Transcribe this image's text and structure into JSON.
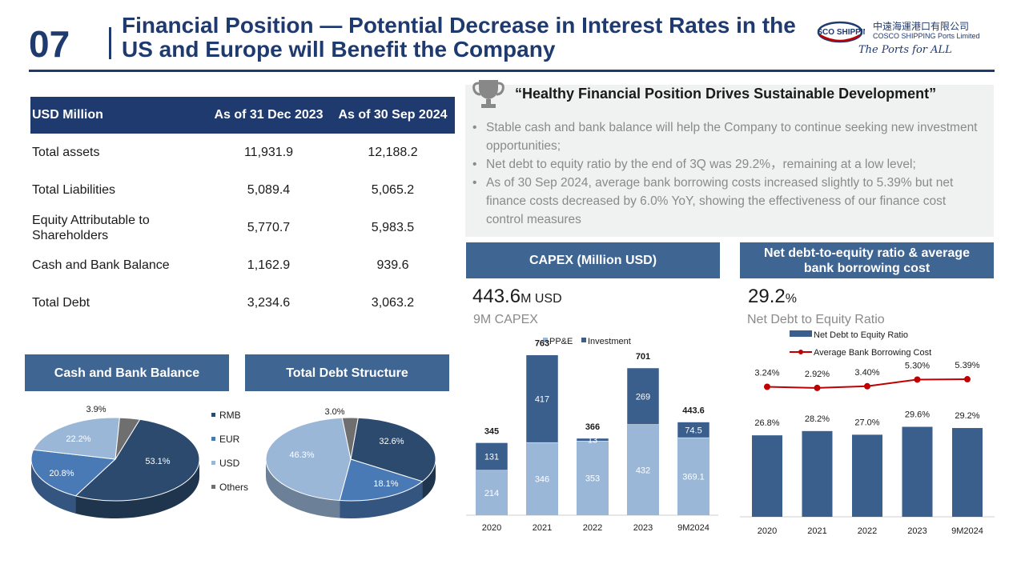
{
  "header": {
    "number": "07",
    "title": "Financial Position — Potential Decrease in Interest Rates in the US and Europe will Benefit the Company",
    "logo_name": "COSCO SHIPPING",
    "logo_cn": "中遠海運港口有限公司",
    "logo_en": "COSCO SHIPPING Ports Limited",
    "logo_tagline": "The Ports for ALL"
  },
  "table": {
    "headers": [
      "USD Million",
      "As of 31 Dec 2023",
      "As of 30 Sep 2024"
    ],
    "rows": [
      {
        "label": "Total assets",
        "v2023": "11,931.9",
        "v2024": "12,188.2"
      },
      {
        "label": "Total Liabilities",
        "v2023": "5,089.4",
        "v2024": "5,065.2"
      },
      {
        "label": "Equity Attributable to Shareholders",
        "v2023": "5,770.7",
        "v2024": "5,983.5"
      },
      {
        "label": "Cash and Bank Balance",
        "v2023": "1,162.9",
        "v2024": "939.6"
      },
      {
        "label": "Total Debt",
        "v2023": "3,234.6",
        "v2024": "3,063.2"
      }
    ]
  },
  "quote": {
    "title": "“Healthy Financial Position Drives Sustainable Development”",
    "bullets": [
      "Stable cash and bank balance will help the Company to continue seeking new investment opportunities;",
      "Net debt to equity ratio by the end of 3Q was 29.2%，remaining at a low level;",
      "As of 30 Sep 2024, average bank borrowing costs increased slightly to 5.39% but net finance costs decreased by 6.0% YoY, showing the effectiveness of our finance cost control measures"
    ]
  },
  "capex": {
    "section_title": "CAPEX (Million USD)",
    "headline_value": "443.6",
    "headline_unit": "M USD",
    "headline_label": "9M CAPEX"
  },
  "debt_ratio": {
    "section_title": "Net debt-to-equity ratio & average bank borrowing cost",
    "headline_value": "29.2",
    "headline_unit": "%",
    "headline_label": "Net Debt to Equity Ratio"
  },
  "cash_pie": {
    "section_title": "Cash and Bank Balance"
  },
  "debt_pie": {
    "section_title": "Total Debt Structure"
  },
  "colors": {
    "navy": "#1f3a6e",
    "section": "#3f6593",
    "dark_blue": "#2c4a6e",
    "mid_blue": "#4a7ab5",
    "light_blue": "#9ab7d8",
    "grey": "#6f6f6f",
    "red": "#c00000",
    "bar": "#3a5f8c"
  },
  "chart_data": [
    {
      "type": "pie",
      "title": "Cash and Bank Balance",
      "legend": [
        "RMB",
        "EUR",
        "USD",
        "Others"
      ],
      "legend_position": "right",
      "slices": [
        {
          "name": "RMB",
          "value": 53.1,
          "label": "53.1%",
          "color": "#2c4a6e"
        },
        {
          "name": "EUR",
          "value": 20.8,
          "label": "20.8%",
          "color": "#4a7ab5"
        },
        {
          "name": "USD",
          "value": 22.2,
          "label": "22.2%",
          "color": "#9ab7d8"
        },
        {
          "name": "Others",
          "value": 3.9,
          "label": "3.9%",
          "color": "#6f6f6f"
        }
      ]
    },
    {
      "type": "pie",
      "title": "Total Debt Structure",
      "slices": [
        {
          "name": "RMB",
          "value": 32.6,
          "label": "32.6%",
          "color": "#2c4a6e"
        },
        {
          "name": "EUR",
          "value": 18.1,
          "label": "18.1%",
          "color": "#4a7ab5"
        },
        {
          "name": "USD",
          "value": 46.3,
          "label": "46.3%",
          "color": "#9ab7d8"
        },
        {
          "name": "Others",
          "value": 3.0,
          "label": "3.0%",
          "color": "#6f6f6f"
        }
      ]
    },
    {
      "type": "bar",
      "stacked": true,
      "title": "CAPEX (Million USD)",
      "categories": [
        "2020",
        "2021",
        "2022",
        "2023",
        "9M2024"
      ],
      "series": [
        {
          "name": "PP&E",
          "values": [
            214,
            346,
            353,
            432,
            369.1
          ],
          "labels": [
            "214",
            "346",
            "353",
            "432",
            "369.1"
          ],
          "color": "#9ab7d8"
        },
        {
          "name": "Investment",
          "values": [
            131,
            417,
            13,
            269,
            74.5
          ],
          "labels": [
            "131",
            "417",
            "13",
            "269",
            "74.5"
          ],
          "color": "#3a5f8c"
        }
      ],
      "totals": [
        "345",
        "763",
        "366",
        "701",
        "443.6"
      ],
      "legend_position": "top"
    },
    {
      "type": "bar",
      "title": "Net debt-to-equity ratio & average bank borrowing cost",
      "categories": [
        "2020",
        "2021",
        "2022",
        "2023",
        "9M2024"
      ],
      "series": [
        {
          "name": "Net Debt to Equity Ratio",
          "type": "bar",
          "values": [
            26.8,
            28.2,
            27.0,
            29.6,
            29.2
          ],
          "labels": [
            "26.8%",
            "28.2%",
            "27.0%",
            "29.6%",
            "29.2%"
          ],
          "color": "#3a5f8c"
        },
        {
          "name": "Average Bank Borrowing Cost",
          "type": "line",
          "values": [
            3.24,
            2.92,
            3.4,
            5.3,
            5.39
          ],
          "labels": [
            "3.24%",
            "2.92%",
            "3.40%",
            "5.30%",
            "5.39%"
          ],
          "color": "#c00000"
        }
      ],
      "legend_position": "top"
    }
  ]
}
